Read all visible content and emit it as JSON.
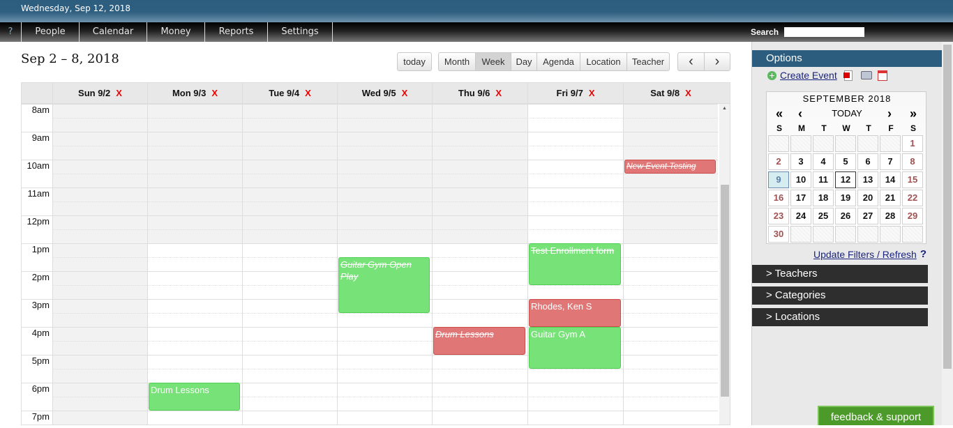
{
  "header": {
    "date": "Wednesday, Sep 12, 2018"
  },
  "nav": {
    "help": "?",
    "items": [
      "People",
      "Calendar",
      "Money",
      "Reports",
      "Settings"
    ],
    "search_label": "Search"
  },
  "toolbar": {
    "range": "Sep 2 – 8, 2018",
    "today": "today",
    "views": [
      "Month",
      "Week",
      "Day",
      "Agenda",
      "Location",
      "Teacher"
    ],
    "active_view": "Week",
    "prev": "‹",
    "next": "›"
  },
  "calendar": {
    "days": [
      "Sun 9/2",
      "Mon 9/3",
      "Tue 9/4",
      "Wed 9/5",
      "Thu 9/6",
      "Fri 9/7",
      "Sat 9/8"
    ],
    "remove": "X",
    "hours": [
      "8am",
      "9am",
      "10am",
      "11am",
      "12pm",
      "1pm",
      "2pm",
      "3pm",
      "4pm",
      "5pm",
      "6pm",
      "7pm"
    ],
    "events": [
      {
        "title": "New Event Testing",
        "day": 6,
        "start": 10,
        "end": 10.5,
        "color": "red",
        "cancelled": true,
        "italic": true
      },
      {
        "title": "Guitar Gym Open Play",
        "day": 3,
        "start": 13.5,
        "end": 15.5,
        "color": "green",
        "cancelled": true,
        "italic": true
      },
      {
        "title": "Test Enrollment form",
        "day": 5,
        "start": 13,
        "end": 14.5,
        "color": "green",
        "cancelled": true,
        "italic": false
      },
      {
        "title": "Rhodes, Ken S",
        "day": 5,
        "start": 15,
        "end": 16,
        "color": "red",
        "cancelled": false,
        "italic": false
      },
      {
        "title": "Drum Lessons",
        "day": 4,
        "start": 16,
        "end": 17,
        "color": "red",
        "cancelled": true,
        "italic": true
      },
      {
        "title": "Guitar Gym A",
        "day": 5,
        "start": 16,
        "end": 17.5,
        "color": "green",
        "cancelled": false,
        "italic": false
      },
      {
        "title": "Drum Lessons",
        "day": 1,
        "start": 18,
        "end": 19,
        "color": "green",
        "cancelled": false,
        "italic": false
      }
    ]
  },
  "sidebar": {
    "options": "Options",
    "create_event": "Create Event",
    "mini": {
      "month": "SEPTEMBER 2018",
      "prev_year": "«",
      "prev": "‹",
      "today": "TODAY",
      "next": "›",
      "next_year": "»",
      "dow": [
        "S",
        "M",
        "T",
        "W",
        "T",
        "F",
        "S"
      ],
      "first_offset": 6,
      "days_in_month": 30,
      "selected": 9,
      "today_date": 12
    },
    "update": "Update Filters / Refresh",
    "help": "?",
    "sections": [
      "> Teachers",
      "> Categories",
      "> Locations"
    ]
  },
  "feedback": "feedback & support"
}
